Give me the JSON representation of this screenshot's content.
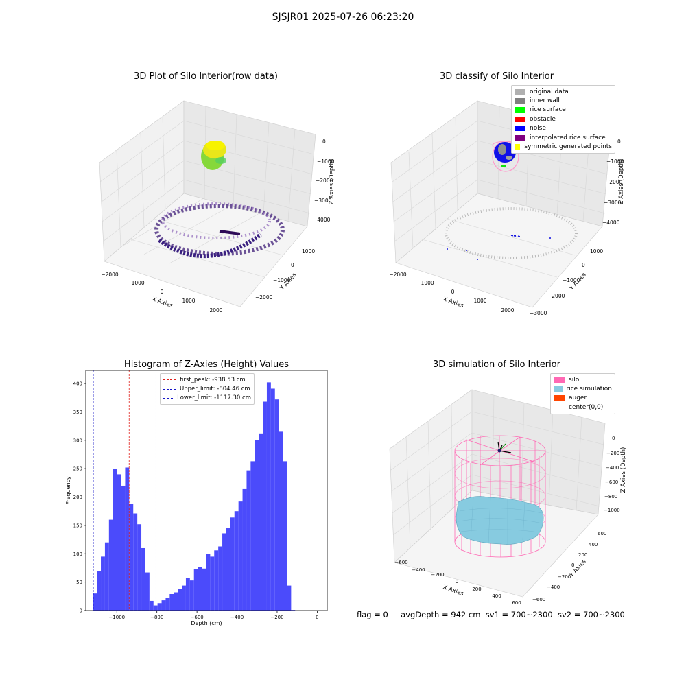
{
  "figure": {
    "title": "SJSJR01 2025-07-26 06:23:20",
    "footer": {
      "flag": "flag = 0",
      "avg_depth": "avgDepth = 942 cm",
      "sv1": "sv1 = 700~2300",
      "sv2": "sv2 = 700~2300"
    }
  },
  "colors": {
    "hist_bar": "#4b4bfb",
    "peak_line": "#e0201c",
    "limit_line": "#1414c8",
    "silo": "#ff69b4",
    "rice": "#87cbe0",
    "auger": "#ff4500"
  },
  "chart_data": [
    {
      "type": "scatter",
      "title": "3D Plot of Silo Interior(row data)",
      "xlabel": "X Axies",
      "ylabel": "Y Axies",
      "zlabel": "Z Axies (Depth)",
      "xticks": [
        "−2000",
        "−1000",
        "0",
        "1000",
        "2000"
      ],
      "yticks": [
        "1000",
        "0",
        "−1000",
        "−2000"
      ],
      "zticks": [
        "0",
        "−1000",
        "−2000",
        "−3000",
        "−4000"
      ]
    },
    {
      "type": "scatter",
      "title": "3D classify of Silo Interior",
      "xlabel": "X Axies",
      "ylabel": "Y Axies",
      "zlabel": "Z Axies (Depth)",
      "xticks": [
        "−2000",
        "−1000",
        "0",
        "1000",
        "2000"
      ],
      "yticks": [
        "1000",
        "0",
        "−1000",
        "−2000",
        "−3000"
      ],
      "zticks": [
        "0",
        "−1000",
        "−2000",
        "−3000",
        "−4000"
      ],
      "legend": [
        {
          "label": "original data",
          "color": "#b0b0b0"
        },
        {
          "label": "inner wall",
          "color": "#808080"
        },
        {
          "label": "rice surface",
          "color": "#00ff00"
        },
        {
          "label": "obstacle",
          "color": "#ff0000"
        },
        {
          "label": "noise",
          "color": "#0000ff"
        },
        {
          "label": "interpolated rice surface",
          "color": "#800080"
        },
        {
          "label": "symmetric generated points",
          "color": "#ffff00"
        }
      ]
    },
    {
      "type": "bar",
      "title": "Histogram of Z-Axies (Height) Values",
      "xlabel": "Depth (cm)",
      "ylabel": "Frequency",
      "xlim": [
        -1155,
        50
      ],
      "ylim": [
        0,
        423
      ],
      "xticks": [
        -1000,
        -800,
        -600,
        -400,
        -200,
        0
      ],
      "yticks": [
        0,
        50,
        100,
        150,
        200,
        250,
        300,
        350,
        400
      ],
      "bin_start": -1120,
      "bin_width": 20.2,
      "values": [
        30,
        69,
        95,
        120,
        160,
        250,
        240,
        220,
        252,
        188,
        171,
        152,
        110,
        67,
        17,
        9,
        13,
        18,
        22,
        29,
        32,
        38,
        44,
        58,
        53,
        73,
        77,
        74,
        100,
        95,
        106,
        113,
        136,
        145,
        164,
        175,
        192,
        214,
        247,
        263,
        300,
        312,
        368,
        402,
        391,
        372,
        315,
        263,
        44,
        1
      ],
      "vlines": [
        {
          "label": "first_peak: -938.53 cm",
          "x": -938.53,
          "color": "#e0201c"
        },
        {
          "label": "Upper_limit: -804.46 cm",
          "x": -804.46,
          "color": "#1414c8"
        },
        {
          "label": "Lower_limit: -1117.30 cm",
          "x": -1117.3,
          "color": "#1414c8"
        }
      ]
    },
    {
      "type": "scatter",
      "title": "3D simulation of Silo Interior",
      "xlabel": "X Axies",
      "ylabel": "Y Axies",
      "zlabel": "Z Axies (Depth)",
      "xticks": [
        "−600",
        "−400",
        "−200",
        "0",
        "200",
        "400",
        "600"
      ],
      "yticks": [
        "600",
        "400",
        "200",
        "0",
        "−200",
        "−400",
        "−600"
      ],
      "zticks": [
        "0",
        "−200",
        "−400",
        "−600",
        "−800",
        "−1000"
      ],
      "legend": [
        {
          "label": "silo",
          "color": "#ff69b4"
        },
        {
          "label": "rice simulation",
          "color": "#87cbe0"
        },
        {
          "label": "auger",
          "color": "#ff4500"
        },
        {
          "label": "center(0,0)",
          "color": "#ffffff"
        }
      ]
    }
  ]
}
